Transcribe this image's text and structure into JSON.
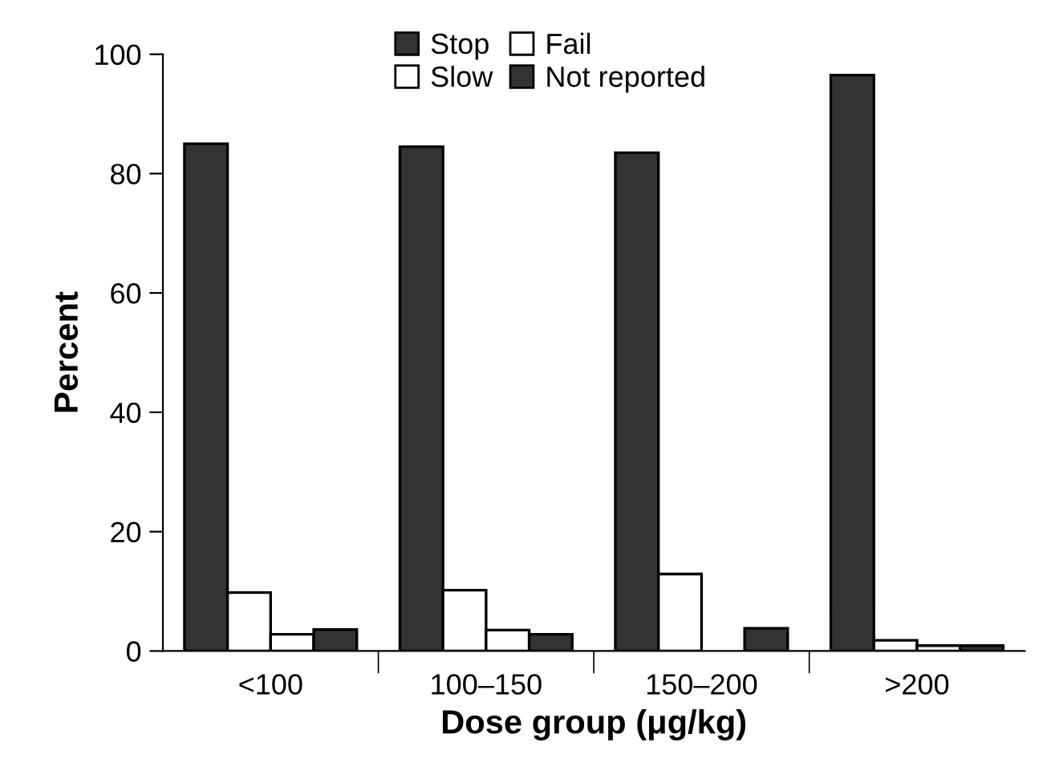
{
  "chart_data": {
    "type": "bar",
    "xlabel": "Dose group (μg/kg)",
    "ylabel": "Percent",
    "categories": [
      "<100",
      "100–150",
      "150–200",
      ">200"
    ],
    "series": [
      {
        "name": "Stop",
        "color": "#333333",
        "values": [
          85,
          84.5,
          83.5,
          96.5
        ]
      },
      {
        "name": "Slow",
        "color": "#ffffff",
        "values": [
          9.8,
          10.2,
          12.9,
          1.8
        ]
      },
      {
        "name": "Fail",
        "color": "#ffffff",
        "values": [
          2.8,
          3.5,
          null,
          0.9
        ]
      },
      {
        "name": "Not reported",
        "color": "#333333",
        "values": [
          3.6,
          2.8,
          3.8,
          0.9
        ]
      }
    ],
    "ylim": [
      0,
      100
    ],
    "yticks": [
      0,
      20,
      40,
      60,
      80,
      100
    ],
    "grid": false,
    "legend": "top"
  }
}
